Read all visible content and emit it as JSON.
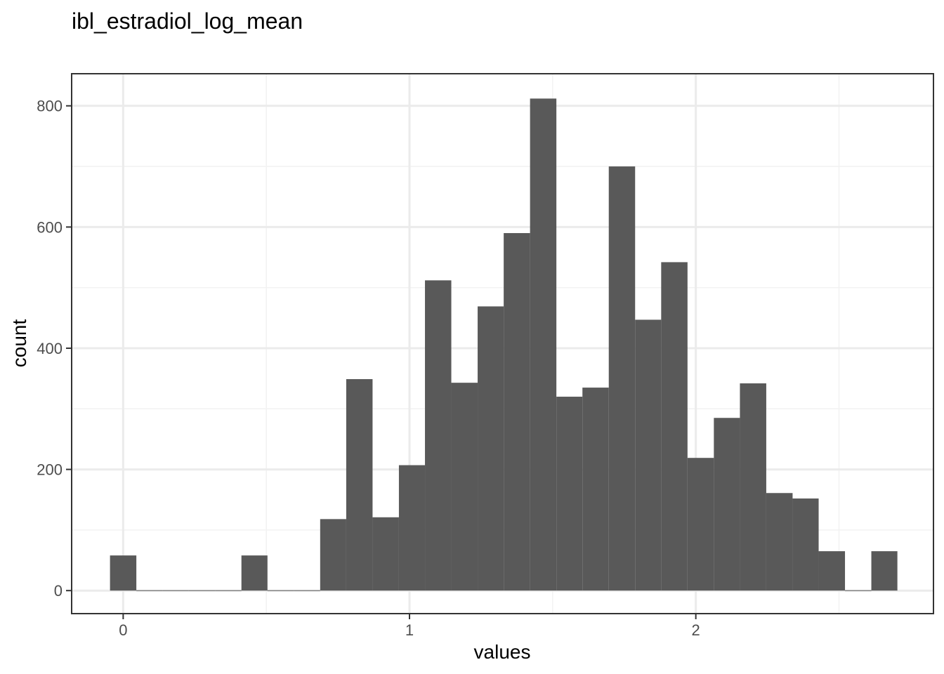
{
  "chart_data": {
    "type": "bar",
    "title": "ibl_estradiol_log_mean",
    "xlabel": "values",
    "ylabel": "count",
    "xlim": [
      -0.18,
      2.83
    ],
    "ylim": [
      -38,
      853
    ],
    "x_ticks": [
      0,
      1,
      2
    ],
    "x_tick_labels": [
      "0",
      "1",
      "2"
    ],
    "y_ticks": [
      0,
      200,
      400,
      600,
      800
    ],
    "y_tick_labels": [
      "0",
      "200",
      "400",
      "600",
      "800"
    ],
    "bin_width": 0.0917,
    "bins": [
      {
        "x0": -0.046,
        "x1": 0.046,
        "count": 58
      },
      {
        "x0": 0.046,
        "x1": 0.138,
        "count": 0
      },
      {
        "x0": 0.138,
        "x1": 0.229,
        "count": 0
      },
      {
        "x0": 0.229,
        "x1": 0.321,
        "count": 0
      },
      {
        "x0": 0.321,
        "x1": 0.413,
        "count": 0
      },
      {
        "x0": 0.413,
        "x1": 0.504,
        "count": 58
      },
      {
        "x0": 0.504,
        "x1": 0.596,
        "count": 0
      },
      {
        "x0": 0.596,
        "x1": 0.688,
        "count": 0
      },
      {
        "x0": 0.688,
        "x1": 0.779,
        "count": 118
      },
      {
        "x0": 0.779,
        "x1": 0.871,
        "count": 349
      },
      {
        "x0": 0.871,
        "x1": 0.963,
        "count": 121
      },
      {
        "x0": 0.963,
        "x1": 1.054,
        "count": 207
      },
      {
        "x0": 1.054,
        "x1": 1.146,
        "count": 512
      },
      {
        "x0": 1.146,
        "x1": 1.238,
        "count": 343
      },
      {
        "x0": 1.238,
        "x1": 1.329,
        "count": 469
      },
      {
        "x0": 1.329,
        "x1": 1.421,
        "count": 590
      },
      {
        "x0": 1.421,
        "x1": 1.513,
        "count": 812
      },
      {
        "x0": 1.513,
        "x1": 1.604,
        "count": 320
      },
      {
        "x0": 1.604,
        "x1": 1.696,
        "count": 335
      },
      {
        "x0": 1.696,
        "x1": 1.788,
        "count": 700
      },
      {
        "x0": 1.788,
        "x1": 1.879,
        "count": 447
      },
      {
        "x0": 1.879,
        "x1": 1.971,
        "count": 542
      },
      {
        "x0": 1.971,
        "x1": 2.063,
        "count": 219
      },
      {
        "x0": 2.063,
        "x1": 2.154,
        "count": 285
      },
      {
        "x0": 2.154,
        "x1": 2.246,
        "count": 342
      },
      {
        "x0": 2.246,
        "x1": 2.338,
        "count": 161
      },
      {
        "x0": 2.338,
        "x1": 2.429,
        "count": 152
      },
      {
        "x0": 2.429,
        "x1": 2.521,
        "count": 65
      },
      {
        "x0": 2.521,
        "x1": 2.613,
        "count": 0
      },
      {
        "x0": 2.613,
        "x1": 2.704,
        "count": 65
      }
    ],
    "grid": true,
    "legend": "none",
    "colors": {
      "bar": "#595959",
      "panel_border": "#333333",
      "grid_major": "#ebebeb",
      "grid_minor": "#f2f2f2",
      "tick": "#333333",
      "tick_label": "#4d4d4d"
    }
  }
}
